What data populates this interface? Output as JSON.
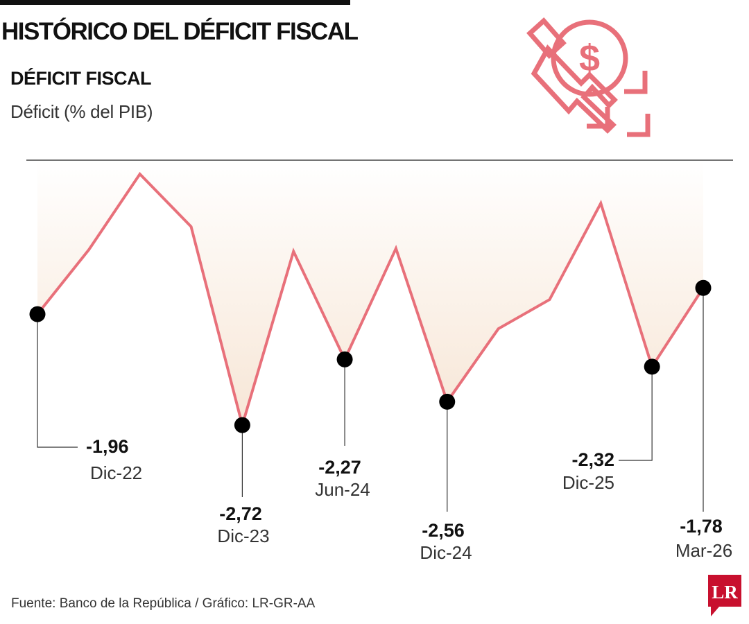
{
  "header": {
    "main_title": "HISTÓRICO DEL DÉFICIT FISCAL"
  },
  "chart_data": {
    "type": "line",
    "title": "DÉFICIT FISCAL",
    "subtitle": "Déficit (% del PIB)",
    "ylim": [
      -2.9,
      -0.9
    ],
    "grid": false,
    "legend": "none",
    "line_color": "#e8707a",
    "fill_color": "#f7e6d6",
    "points": [
      {
        "y": -1.96,
        "labeled": true,
        "value_label": "-1,96",
        "date_label": "Dic-22"
      },
      {
        "y": -1.52
      },
      {
        "y": -1.0
      },
      {
        "y": -1.36
      },
      {
        "y": -2.72,
        "labeled": true,
        "value_label": "-2,72",
        "date_label": "Dic-23"
      },
      {
        "y": -1.53
      },
      {
        "y": -2.27,
        "labeled": true,
        "value_label": "-2,27",
        "date_label": "Jun-24"
      },
      {
        "y": -1.51
      },
      {
        "y": -2.56,
        "labeled": true,
        "value_label": "-2,56",
        "date_label": "Dic-24"
      },
      {
        "y": -2.06
      },
      {
        "y": -1.86
      },
      {
        "y": -1.2
      },
      {
        "y": -2.32,
        "labeled": true,
        "value_label": "-2,32",
        "date_label": "Dic-25"
      },
      {
        "y": -1.78,
        "labeled": true,
        "value_label": "-1,78",
        "date_label": "Mar-26"
      }
    ]
  },
  "footer": {
    "source": "Fuente: Banco de la República / Gráfico: LR-GR-AA",
    "logo_text": "LR"
  },
  "icon": {
    "name": "money-decline-icon",
    "color": "#e8707a"
  }
}
